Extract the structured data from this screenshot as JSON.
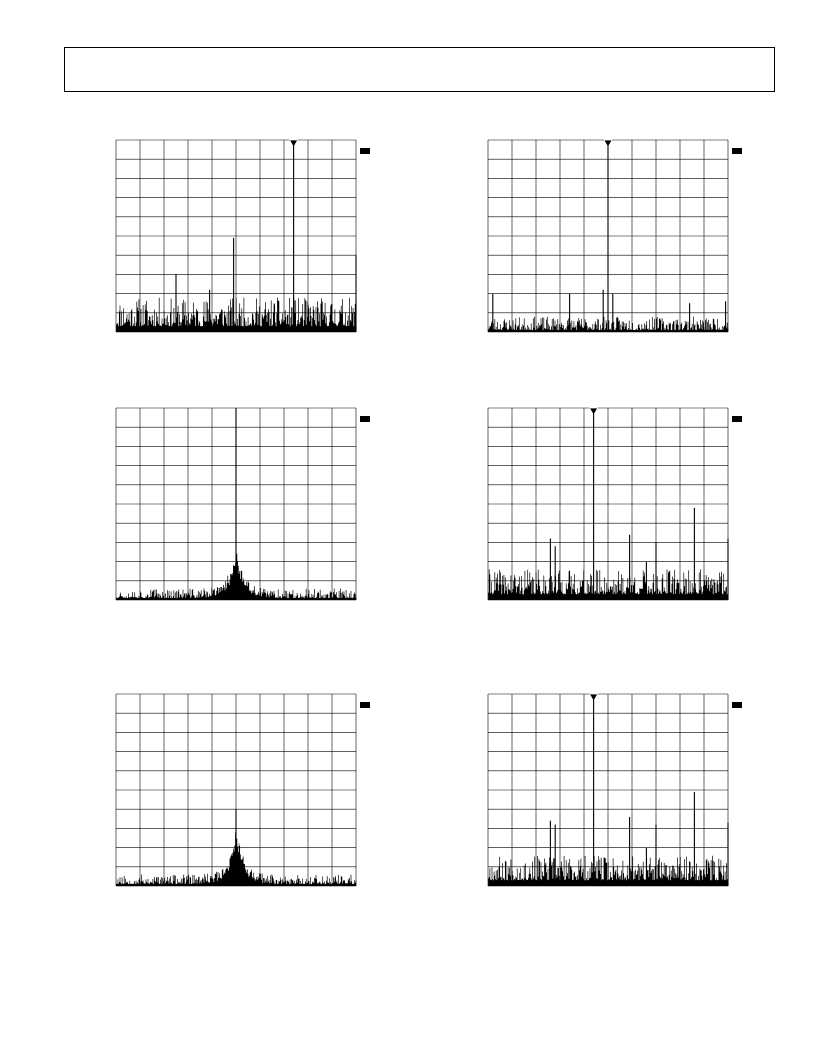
{
  "colors": {
    "trace": "#000000",
    "grid": "#000000",
    "background": "#ffffff"
  },
  "chart_data": [
    {
      "type": "line",
      "x_divisions": 10,
      "y_divisions": 10,
      "grid": true,
      "ref_marker": true,
      "marker": {
        "x": 7.4,
        "y": 9.8
      },
      "peaks": [
        {
          "x": 7.4,
          "y": 9.8
        },
        {
          "x": 2.5,
          "y": 3.0
        },
        {
          "x": 3.9,
          "y": 2.2
        },
        {
          "x": 4.9,
          "y": 4.9
        },
        {
          "x": 7.4,
          "y": 1.8
        },
        {
          "x": 10.0,
          "y": 4.0
        }
      ],
      "noise_floor": [
        0.3,
        1.8
      ],
      "noise_seed": 11
    },
    {
      "type": "line",
      "x_divisions": 10,
      "y_divisions": 10,
      "grid": true,
      "ref_marker": true,
      "marker": {
        "x": 5.0,
        "y": 9.8
      },
      "peaks": [
        {
          "x": 5.0,
          "y": 9.8
        },
        {
          "x": 0.2,
          "y": 2.0
        },
        {
          "x": 4.8,
          "y": 2.2
        },
        {
          "x": 5.2,
          "y": 2.0
        },
        {
          "x": 3.4,
          "y": 2.0
        },
        {
          "x": 8.4,
          "y": 1.5
        },
        {
          "x": 9.9,
          "y": 1.6
        }
      ],
      "noise_floor": [
        0.1,
        0.8
      ],
      "noise_seed": 23
    },
    {
      "type": "line",
      "x_divisions": 10,
      "y_divisions": 10,
      "grid": true,
      "ref_marker": true,
      "peaks": [
        {
          "x": 5.0,
          "y": 10.0
        }
      ],
      "skirt_center": 5.0,
      "skirt_height": 2.5,
      "noise_floor": [
        0.1,
        0.6
      ],
      "noise_seed": 37
    },
    {
      "type": "line",
      "x_divisions": 10,
      "y_divisions": 10,
      "grid": true,
      "ref_marker": true,
      "marker": {
        "x": 4.4,
        "y": 9.8
      },
      "peaks": [
        {
          "x": 4.4,
          "y": 9.8
        },
        {
          "x": 8.6,
          "y": 4.8
        },
        {
          "x": 2.6,
          "y": 3.2
        },
        {
          "x": 2.8,
          "y": 2.8
        },
        {
          "x": 5.9,
          "y": 3.4
        },
        {
          "x": 7.0,
          "y": 3.0
        },
        {
          "x": 6.6,
          "y": 2.0
        },
        {
          "x": 10.0,
          "y": 3.2
        }
      ],
      "noise_floor": [
        0.3,
        1.6
      ],
      "noise_seed": 41
    },
    {
      "type": "line",
      "x_divisions": 10,
      "y_divisions": 10,
      "grid": true,
      "ref_marker": true,
      "peaks": [
        {
          "x": 5.0,
          "y": 4.0
        }
      ],
      "skirt_center": 5.0,
      "skirt_height": 3.0,
      "noise_floor": [
        0.1,
        0.6
      ],
      "noise_seed": 53
    },
    {
      "type": "line",
      "x_divisions": 10,
      "y_divisions": 10,
      "grid": true,
      "ref_marker": true,
      "marker": {
        "x": 4.4,
        "y": 9.8
      },
      "peaks": [
        {
          "x": 4.4,
          "y": 9.8
        },
        {
          "x": 8.6,
          "y": 4.9
        },
        {
          "x": 2.6,
          "y": 3.4
        },
        {
          "x": 2.8,
          "y": 3.2
        },
        {
          "x": 5.9,
          "y": 3.6
        },
        {
          "x": 7.0,
          "y": 3.2
        },
        {
          "x": 10.0,
          "y": 3.3
        },
        {
          "x": 6.6,
          "y": 2.0
        }
      ],
      "noise_floor": [
        0.3,
        1.6
      ],
      "noise_seed": 67
    }
  ]
}
